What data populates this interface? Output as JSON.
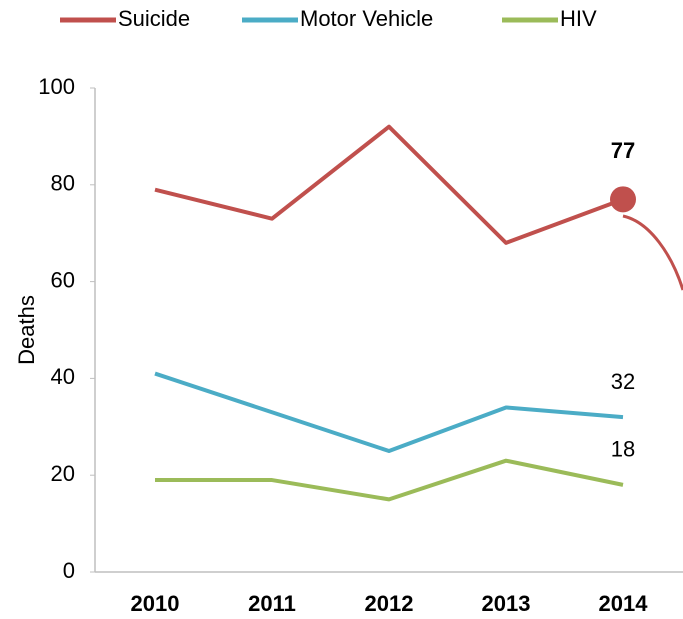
{
  "chart_data": {
    "type": "line",
    "categories": [
      "2010",
      "2011",
      "2012",
      "2013",
      "2014"
    ],
    "series": [
      {
        "name": "Suicide",
        "color": "#c0504d",
        "values": [
          79,
          73,
          92,
          68,
          77
        ]
      },
      {
        "name": "Motor Vehicle",
        "color": "#4bacc6",
        "values": [
          41,
          33,
          25,
          34,
          32
        ]
      },
      {
        "name": "HIV",
        "color": "#9bbb59",
        "values": [
          19,
          19,
          15,
          23,
          18
        ]
      }
    ],
    "ylabel": "Deaths",
    "ylim": [
      0,
      100
    ],
    "yticks": [
      0,
      20,
      40,
      60,
      80,
      100
    ],
    "grid": false
  }
}
